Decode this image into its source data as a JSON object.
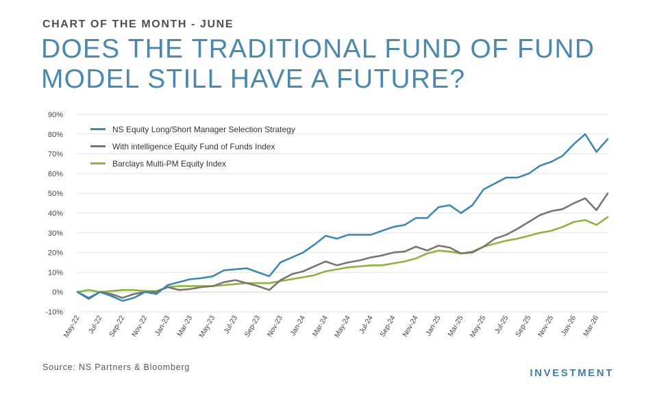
{
  "header": {
    "kicker": "CHART OF THE MONTH - JUNE",
    "title": "DOES THE TRADITIONAL FUND OF FUND MODEL STILL HAVE A FUTURE?"
  },
  "footer": {
    "source": "Source: NS Partners & Bloomberg",
    "brand": "INVESTMENT"
  },
  "colors": {
    "title": "#4a88ad",
    "series": [
      "#3f87b3",
      "#7a736e",
      "#8fb13f"
    ],
    "grid": "#e2e2e2"
  },
  "chart_data": {
    "type": "line",
    "title": "",
    "xlabel": "",
    "ylabel": "",
    "ylim": [
      -10,
      90
    ],
    "yticks": [
      -10,
      0,
      10,
      20,
      30,
      40,
      50,
      60,
      70,
      80,
      90
    ],
    "ytick_labels": [
      "-10%",
      "0%",
      "10%",
      "20%",
      "30%",
      "40%",
      "50%",
      "60%",
      "70%",
      "80%",
      "90%"
    ],
    "grid": "horizontal",
    "legend": "top-left",
    "x_tick_labels": [
      "May-22",
      "Jul-22",
      "Sep-22",
      "Nov-22",
      "Jan-23",
      "Mar-23",
      "May-23",
      "Jul-23",
      "Sep-23",
      "Nov-23",
      "Jan-24",
      "Mar-24",
      "May-24",
      "Jul-24",
      "Sep-24",
      "Nov-24",
      "Jan-25",
      "Mar-25",
      "May-25",
      "Jul-25",
      "Sep-25",
      "Nov-25",
      "Jan-26",
      "Mar-26"
    ],
    "x": [
      "May-22",
      "Jun-22",
      "Jul-22",
      "Aug-22",
      "Sep-22",
      "Oct-22",
      "Nov-22",
      "Dec-22",
      "Jan-23",
      "Feb-23",
      "Mar-23",
      "Apr-23",
      "May-23",
      "Jun-23",
      "Jul-23",
      "Aug-23",
      "Sep-23",
      "Oct-23",
      "Nov-23",
      "Dec-23",
      "Jan-24",
      "Feb-24",
      "Mar-24",
      "Apr-24",
      "May-24",
      "Jun-24",
      "Jul-24",
      "Aug-24",
      "Sep-24",
      "Oct-24",
      "Nov-24",
      "Dec-24",
      "Jan-25",
      "Feb-25",
      "Mar-25",
      "Apr-25",
      "May-25",
      "Jun-25",
      "Jul-25",
      "Aug-25",
      "Sep-25",
      "Oct-25",
      "Nov-25",
      "Dec-25",
      "Jan-26",
      "Feb-26",
      "Mar-26",
      "Apr-26"
    ],
    "series": [
      {
        "name": "NS Equity Long/Short Manager Selection Strategy",
        "values": [
          0,
          -3,
          0,
          -2,
          -4.5,
          -3,
          0,
          -1,
          3.5,
          5,
          6.5,
          7,
          8,
          11,
          11.5,
          12,
          10,
          8,
          15,
          17.5,
          20,
          24,
          28.5,
          27,
          29,
          29,
          29,
          31,
          33,
          34,
          37.5,
          37.5,
          43,
          44,
          40,
          44,
          52,
          55,
          58,
          58,
          60,
          64,
          66,
          69,
          75,
          80,
          71,
          77.5
        ]
      },
      {
        "name": "With intelligence Equity Fund of Funds Index",
        "values": [
          0,
          -3.5,
          0,
          -1,
          -3,
          -1,
          0,
          0,
          2.5,
          1,
          1.5,
          2.5,
          3,
          5,
          6,
          4.5,
          3,
          1,
          6,
          9,
          10.5,
          13,
          15.5,
          13.5,
          15,
          16,
          17.5,
          18.5,
          20,
          20.5,
          23,
          21,
          23.5,
          22.5,
          19.5,
          20,
          23,
          27,
          29,
          32,
          35.5,
          39,
          41,
          42,
          45,
          47.5,
          41.5,
          50
        ]
      },
      {
        "name": "Barclays Multi-PM Equity Index",
        "values": [
          0,
          1,
          0,
          0.5,
          1,
          1,
          0.5,
          0.5,
          2.5,
          3,
          3,
          3,
          3,
          3.5,
          4,
          4.5,
          4.5,
          4.5,
          5.5,
          6.5,
          7.5,
          8.5,
          10.5,
          11.5,
          12.5,
          13,
          13.5,
          13.5,
          14.5,
          15.5,
          17,
          19.5,
          21,
          20.5,
          19.5,
          20.5,
          23,
          24.5,
          26,
          27,
          28.5,
          30,
          31,
          33,
          35.5,
          36.5,
          34,
          38
        ]
      }
    ]
  }
}
